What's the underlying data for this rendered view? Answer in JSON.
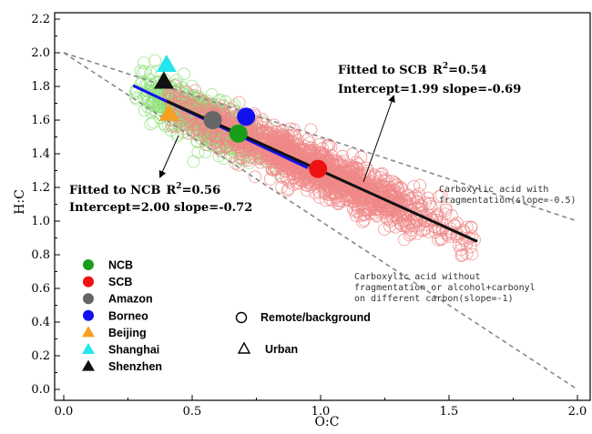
{
  "chart_data": {
    "type": "scatter",
    "xlabel": "O:C",
    "ylabel": "H:C",
    "xlim": [
      0.0,
      2.0
    ],
    "ylim": [
      0.0,
      2.2
    ],
    "x_ticks": [
      "0.0",
      "0.5",
      "1.0",
      "1.5",
      "2.0"
    ],
    "y_ticks": [
      "0.0",
      "0.2",
      "0.4",
      "0.6",
      "0.8",
      "1.0",
      "1.2",
      "1.4",
      "1.6",
      "1.8",
      "2.0",
      "2.2"
    ],
    "grid": false,
    "series": [
      {
        "name": "NCB",
        "color": "#1a9e1a",
        "marker": "circle",
        "points": [
          {
            "x": 0.68,
            "y": 1.52
          }
        ]
      },
      {
        "name": "SCB",
        "color": "#ee1111",
        "marker": "circle",
        "points": [
          {
            "x": 0.99,
            "y": 1.31
          }
        ]
      },
      {
        "name": "Amazon",
        "color": "#666666",
        "marker": "circle",
        "points": [
          {
            "x": 0.58,
            "y": 1.6
          }
        ]
      },
      {
        "name": "Borneo",
        "color": "#1111ee",
        "marker": "circle",
        "points": [
          {
            "x": 0.71,
            "y": 1.62
          }
        ]
      },
      {
        "name": "Beijing",
        "color": "#f5a020",
        "marker": "triangle",
        "points": [
          {
            "x": 0.41,
            "y": 1.64
          }
        ]
      },
      {
        "name": "Shanghai",
        "color": "#22e5ee",
        "marker": "triangle",
        "points": [
          {
            "x": 0.4,
            "y": 1.93
          }
        ]
      },
      {
        "name": "Shenzhen",
        "color": "#111111",
        "marker": "triangle",
        "points": [
          {
            "x": 0.39,
            "y": 1.83
          }
        ]
      }
    ],
    "clouds": [
      {
        "name": "NCB",
        "color": "#8fe07a",
        "x_range": [
          0.28,
          0.86
        ],
        "center_x": 0.55,
        "fit_intercept": 2.0,
        "fit_slope": -0.72,
        "n": 650
      },
      {
        "name": "SCB",
        "color": "#f08888",
        "x_range": [
          0.4,
          1.6
        ],
        "center_x": 0.98,
        "fit_intercept": 1.99,
        "fit_slope": -0.69,
        "n": 1500
      }
    ],
    "fit_lines": [
      {
        "name": "NCB",
        "color": "#1111ee",
        "x": [
          0.27,
          0.95
        ],
        "intercept": 2.0,
        "slope": -0.72
      },
      {
        "name": "SCB",
        "color": "#111111",
        "x": [
          0.4,
          1.61
        ],
        "intercept": 1.99,
        "slope": -0.69
      }
    ],
    "reference_lines": [
      {
        "color": "#888888",
        "intercept": 2.0,
        "slope": -0.5,
        "x": [
          0.0,
          2.0
        ]
      },
      {
        "color": "#888888",
        "intercept": 2.0,
        "slope": -1.0,
        "x": [
          0.0,
          2.0
        ]
      }
    ],
    "annotations": {
      "scb_fit_line1": "Fitted to SCB",
      "scb_fit_r2": "R",
      "scb_fit_r2_sup": "2",
      "scb_fit_r2_val": "=0.54",
      "scb_fit_line2": "Intercept=1.99 slope=-0.69",
      "ncb_fit_line1": "Fitted to NCB",
      "ncb_fit_r2": "R",
      "ncb_fit_r2_sup": "2",
      "ncb_fit_r2_val": "=0.56",
      "ncb_fit_line2": "Intercept=2.00 slope=-0.72",
      "ref1_line1": "Carboxylic acid with",
      "ref1_line2": "fragmentation(slope=-0.5)",
      "ref2_line1": "Carboxylic acid without",
      "ref2_line2": "fragmentation or alcohol+carbonyl",
      "ref2_line3": "on different carbon(slope=-1)"
    },
    "legend": {
      "placement": "bottom-left",
      "entries": [
        "NCB",
        "SCB",
        "Amazon",
        "Borneo",
        "Beijing",
        "Shanghai",
        "Shenzhen"
      ]
    },
    "marker_legend": {
      "remote_label": "Remote/background",
      "urban_label": "Urban"
    }
  }
}
